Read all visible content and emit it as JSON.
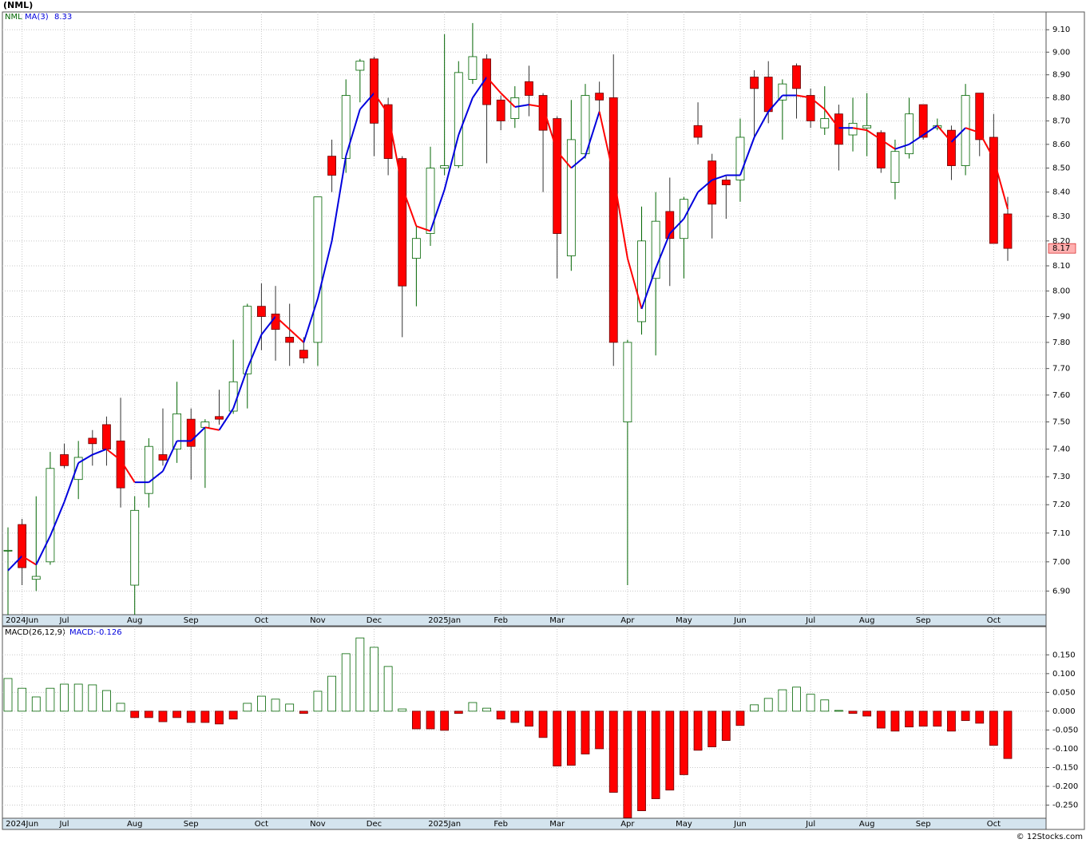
{
  "chart_data": [
    {
      "type": "candlestick",
      "title": "(NML)",
      "symbol": "NML",
      "categories": [
        null,
        "2024Jun",
        null,
        null,
        "Jul",
        null,
        null,
        null,
        null,
        "Aug",
        null,
        null,
        null,
        "Sep",
        null,
        null,
        null,
        null,
        "Oct",
        null,
        null,
        null,
        "Nov",
        null,
        null,
        null,
        "Dec",
        null,
        null,
        null,
        null,
        "2025Jan",
        null,
        null,
        null,
        "Feb",
        null,
        null,
        null,
        "Mar",
        null,
        null,
        null,
        null,
        "Apr",
        null,
        null,
        null,
        "May",
        null,
        null,
        null,
        "Jun",
        null,
        null,
        null,
        null,
        "Jul",
        null,
        null,
        null,
        "Aug",
        null,
        null,
        null,
        "Sep",
        null,
        null,
        null,
        null,
        "Oct",
        null
      ],
      "open": [
        7.04,
        7.13,
        6.94,
        7.0,
        7.38,
        7.29,
        7.44,
        7.49,
        7.43,
        6.92,
        7.24,
        7.38,
        7.4,
        7.51,
        7.48,
        7.52,
        7.54,
        7.68,
        7.94,
        7.91,
        7.82,
        7.77,
        7.8,
        8.55,
        8.54,
        8.92,
        8.97,
        8.77,
        8.54,
        8.13,
        8.23,
        8.5,
        8.51,
        8.88,
        8.97,
        8.79,
        8.71,
        8.87,
        8.81,
        8.71,
        8.14,
        8.56,
        8.82,
        8.8,
        7.5,
        7.88,
        8.05,
        8.32,
        8.21,
        8.68,
        8.53,
        8.45,
        8.45,
        8.89,
        8.89,
        8.79,
        8.94,
        8.81,
        8.67,
        8.73,
        8.64,
        8.67,
        8.65,
        8.44,
        8.56,
        8.77,
        8.67,
        8.66,
        8.51,
        8.82,
        8.63,
        8.31
      ],
      "high": [
        7.12,
        7.15,
        7.23,
        7.39,
        7.42,
        7.43,
        7.47,
        7.52,
        7.59,
        7.23,
        7.44,
        7.55,
        7.65,
        7.55,
        7.51,
        7.62,
        7.81,
        7.95,
        8.03,
        8.02,
        7.95,
        7.82,
        8.38,
        8.62,
        8.88,
        8.97,
        8.98,
        8.8,
        8.55,
        8.26,
        8.59,
        9.08,
        8.96,
        9.13,
        8.99,
        8.81,
        8.85,
        8.94,
        8.82,
        8.72,
        8.79,
        8.86,
        8.87,
        8.99,
        7.81,
        8.34,
        8.4,
        8.46,
        8.38,
        8.78,
        8.56,
        8.47,
        8.71,
        8.92,
        8.96,
        8.88,
        8.95,
        8.84,
        8.85,
        8.77,
        8.8,
        8.82,
        8.66,
        8.62,
        8.8,
        8.77,
        8.71,
        8.68,
        8.86,
        8.82,
        8.73,
        8.38
      ],
      "low": [
        6.82,
        6.92,
        6.9,
        6.99,
        7.33,
        7.22,
        7.34,
        7.34,
        7.19,
        6.82,
        7.19,
        7.34,
        7.35,
        7.29,
        7.26,
        7.49,
        7.53,
        7.55,
        7.77,
        7.73,
        7.71,
        7.72,
        7.71,
        8.4,
        8.48,
        8.78,
        8.55,
        8.47,
        7.82,
        7.94,
        8.18,
        8.47,
        8.5,
        8.86,
        8.52,
        8.66,
        8.67,
        8.72,
        8.4,
        8.05,
        8.08,
        8.54,
        8.73,
        7.71,
        6.92,
        7.83,
        7.75,
        8.02,
        8.05,
        8.6,
        8.21,
        8.29,
        8.36,
        8.63,
        8.69,
        8.62,
        8.71,
        8.67,
        8.64,
        8.49,
        8.57,
        8.55,
        8.48,
        8.37,
        8.54,
        8.62,
        8.66,
        8.45,
        8.47,
        8.55,
        8.19,
        8.12
      ],
      "close": [
        7.04,
        6.98,
        6.95,
        7.33,
        7.34,
        7.37,
        7.42,
        7.4,
        7.26,
        7.18,
        7.41,
        7.36,
        7.53,
        7.41,
        7.5,
        7.51,
        7.65,
        7.94,
        7.9,
        7.85,
        7.8,
        7.74,
        8.38,
        8.47,
        8.81,
        8.96,
        8.69,
        8.54,
        8.02,
        8.21,
        8.5,
        8.51,
        8.91,
        8.98,
        8.77,
        8.7,
        8.8,
        8.81,
        8.66,
        8.23,
        8.62,
        8.81,
        8.79,
        7.8,
        7.8,
        8.2,
        8.28,
        8.21,
        8.37,
        8.63,
        8.35,
        8.43,
        8.63,
        8.84,
        8.74,
        8.86,
        8.84,
        8.7,
        8.71,
        8.6,
        8.69,
        8.68,
        8.5,
        8.57,
        8.73,
        8.63,
        8.68,
        8.51,
        8.81,
        8.62,
        8.19,
        8.17
      ],
      "ma": {
        "name": "MA(3)",
        "up_color": "#0000dd",
        "down_color": "#ff0000",
        "values": [
          6.97,
          7.02,
          6.99,
          7.09,
          7.21,
          7.35,
          7.38,
          7.4,
          7.36,
          7.28,
          7.28,
          7.32,
          7.43,
          7.43,
          7.48,
          7.47,
          7.55,
          7.7,
          7.83,
          7.9,
          7.85,
          7.8,
          7.97,
          8.2,
          8.55,
          8.75,
          8.82,
          8.73,
          8.42,
          8.26,
          8.24,
          8.41,
          8.64,
          8.8,
          8.89,
          8.82,
          8.76,
          8.77,
          8.76,
          8.57,
          8.5,
          8.55,
          8.74,
          8.47,
          8.13,
          7.93,
          8.09,
          8.23,
          8.29,
          8.4,
          8.45,
          8.47,
          8.47,
          8.63,
          8.74,
          8.81,
          8.81,
          8.8,
          8.75,
          8.67,
          8.67,
          8.66,
          8.62,
          8.58,
          8.6,
          8.64,
          8.68,
          8.61,
          8.67,
          8.65,
          8.54,
          8.33
        ]
      },
      "up_color": "#006400",
      "down_color": "#ff0000",
      "log_scale": true,
      "grid": true,
      "ylim": [
        6.82,
        9.18
      ],
      "yticks": [
        {
          "value": 6.9,
          "label": "6.90"
        },
        {
          "value": 7.0,
          "label": "7.00"
        },
        {
          "value": 7.1,
          "label": "7.10"
        },
        {
          "value": 7.2,
          "label": "7.20"
        },
        {
          "value": 7.3,
          "label": "7.30"
        },
        {
          "value": 7.4,
          "label": "7.40"
        },
        {
          "value": 7.5,
          "label": "7.50"
        },
        {
          "value": 7.6,
          "label": "7.60"
        },
        {
          "value": 7.7,
          "label": "7.70"
        },
        {
          "value": 7.8,
          "label": "7.80"
        },
        {
          "value": 7.9,
          "label": "7.90"
        },
        {
          "value": 8.0,
          "label": "8.00"
        },
        {
          "value": 8.1,
          "label": "8.10"
        },
        {
          "value": 8.2,
          "label": "8.20"
        },
        {
          "value": 8.3,
          "label": "8.30"
        },
        {
          "value": 8.4,
          "label": "8.40"
        },
        {
          "value": 8.5,
          "label": "8.50"
        },
        {
          "value": 8.6,
          "label": "8.60"
        },
        {
          "value": 8.7,
          "label": "8.70"
        },
        {
          "value": 8.8,
          "label": "8.80"
        },
        {
          "value": 8.9,
          "label": "8.90"
        },
        {
          "value": 9.0,
          "label": "9.00"
        },
        {
          "value": 9.1,
          "label": "9.10"
        }
      ]
    },
    {
      "type": "bar",
      "name": "MACD(26,12,9)",
      "label": "MACD:-0.126",
      "values": [
        0.087,
        0.061,
        0.038,
        0.061,
        0.072,
        0.072,
        0.07,
        0.055,
        0.021,
        -0.017,
        -0.017,
        -0.028,
        -0.017,
        -0.03,
        -0.03,
        -0.034,
        -0.021,
        0.021,
        0.04,
        0.032,
        0.019,
        -0.006,
        0.053,
        0.093,
        0.153,
        0.195,
        0.17,
        0.119,
        0.006,
        -0.047,
        -0.047,
        -0.051,
        -0.006,
        0.023,
        0.008,
        -0.021,
        -0.03,
        -0.04,
        -0.07,
        -0.146,
        -0.144,
        -0.114,
        -0.1,
        -0.216,
        -0.284,
        -0.265,
        -0.233,
        -0.21,
        -0.169,
        -0.104,
        -0.095,
        -0.078,
        -0.038,
        0.017,
        0.034,
        0.057,
        0.064,
        0.045,
        0.03,
        0.002,
        -0.006,
        -0.013,
        -0.045,
        -0.053,
        -0.042,
        -0.04,
        -0.04,
        -0.053,
        -0.025,
        -0.032,
        -0.091,
        -0.126
      ],
      "up_color": "#006400",
      "down_color": "#ff0000",
      "grid": true,
      "ylim": [
        -0.285,
        0.225
      ],
      "yticks": [
        {
          "value": -0.25,
          "label": "-0.250"
        },
        {
          "value": -0.2,
          "label": "-0.200"
        },
        {
          "value": -0.15,
          "label": "-0.150"
        },
        {
          "value": -0.1,
          "label": "-0.100"
        },
        {
          "value": -0.05,
          "label": "-0.050"
        },
        {
          "value": 0,
          "label": "0.000"
        },
        {
          "value": 0.05,
          "label": "0.050"
        },
        {
          "value": 0.1,
          "label": "0.100"
        },
        {
          "value": 0.15,
          "label": "0.150"
        }
      ]
    }
  ],
  "footer": "© 12Stocks.com"
}
